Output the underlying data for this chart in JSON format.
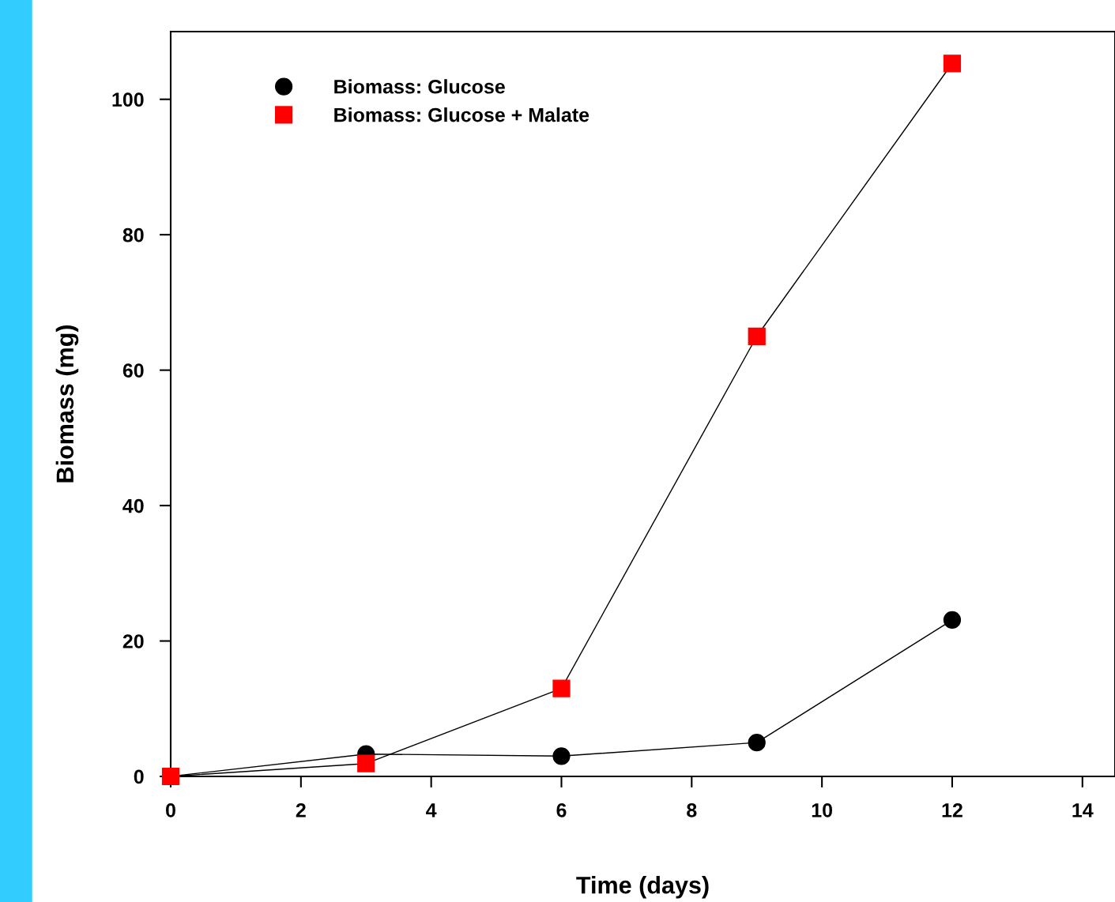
{
  "chart_data": {
    "type": "line",
    "xlabel": "Time (days)",
    "ylabel": "Biomass (mg)",
    "x": [
      0,
      3,
      6,
      9,
      12
    ],
    "series": [
      {
        "name": "Biomass: Glucose",
        "color": "#000000",
        "marker": "circle",
        "values": [
          0,
          3.3,
          3.0,
          5.0,
          23.1
        ]
      },
      {
        "name": "Biomass: Glucose + Malate",
        "color": "#ff0000",
        "marker": "square",
        "values": [
          0,
          1.9,
          13.0,
          65.0,
          105.3
        ]
      }
    ],
    "xlim": [
      0,
      14.5
    ],
    "xticks": [
      0,
      2,
      4,
      6,
      8,
      10,
      12,
      14
    ],
    "ylim": [
      0,
      110
    ],
    "yticks": [
      0,
      20,
      40,
      60,
      80,
      100
    ],
    "grid": false,
    "legend": "top left",
    "line_style": "solid"
  }
}
